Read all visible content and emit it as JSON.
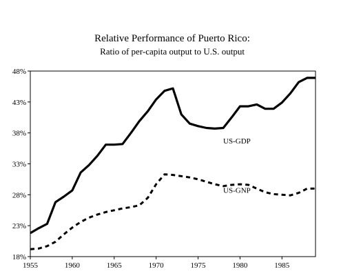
{
  "chart_data": {
    "type": "line",
    "title": "Relative Performance of Puerto Rico:",
    "subtitle": "Ratio of per-capita output to U.S. output",
    "xlabel": "",
    "ylabel": "",
    "xlim": [
      1955,
      1989
    ],
    "ylim": [
      18,
      48
    ],
    "x_ticks": [
      1955,
      1960,
      1965,
      1970,
      1975,
      1980,
      1985
    ],
    "y_ticks": [
      18,
      23,
      28,
      33,
      38,
      43,
      48
    ],
    "y_tick_labels": [
      "18%",
      "23%",
      "28%",
      "33%",
      "38%",
      "43%",
      "48%"
    ],
    "grid": false,
    "legend": "none",
    "series": [
      {
        "name": "US-GDP",
        "style": "solid",
        "label_at": {
          "x": 1978,
          "y": 36.3
        },
        "x": [
          1955,
          1956,
          1957,
          1958,
          1959,
          1960,
          1961,
          1962,
          1963,
          1964,
          1965,
          1966,
          1967,
          1968,
          1969,
          1970,
          1971,
          1972,
          1973,
          1974,
          1975,
          1976,
          1977,
          1978,
          1979,
          1980,
          1981,
          1982,
          1983,
          1984,
          1985,
          1986,
          1987,
          1988,
          1989
        ],
        "values": [
          21.8,
          22.6,
          23.3,
          26.8,
          27.7,
          28.7,
          31.6,
          32.8,
          34.3,
          36.1,
          36.1,
          36.2,
          38.0,
          39.9,
          41.5,
          43.4,
          44.8,
          45.2,
          41.0,
          39.5,
          39.1,
          38.8,
          38.7,
          38.8,
          40.5,
          42.3,
          42.3,
          42.6,
          41.9,
          41.9,
          42.9,
          44.4,
          46.2,
          46.9,
          46.9
        ]
      },
      {
        "name": "US-GNP",
        "style": "dashed",
        "label_at": {
          "x": 1978,
          "y": 28.3
        },
        "x": [
          1955,
          1956,
          1957,
          1958,
          1959,
          1960,
          1961,
          1962,
          1963,
          1964,
          1965,
          1966,
          1967,
          1968,
          1969,
          1970,
          1971,
          1972,
          1973,
          1974,
          1975,
          1976,
          1977,
          1978,
          1979,
          1980,
          1981,
          1982,
          1983,
          1984,
          1985,
          1986,
          1987,
          1988,
          1989
        ],
        "values": [
          19.2,
          19.3,
          19.7,
          20.4,
          21.6,
          22.7,
          23.6,
          24.3,
          24.8,
          25.2,
          25.5,
          25.8,
          26.0,
          26.3,
          27.5,
          29.7,
          31.3,
          31.2,
          31.0,
          30.8,
          30.5,
          30.1,
          29.7,
          29.4,
          29.6,
          29.7,
          29.6,
          29.0,
          28.4,
          28.1,
          28.0,
          27.9,
          28.3,
          29.0,
          29.0
        ]
      }
    ]
  }
}
